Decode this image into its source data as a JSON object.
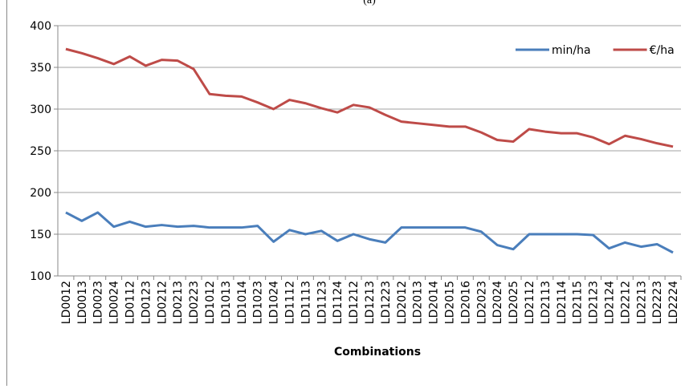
{
  "chart_data": {
    "type": "line",
    "title": "(a)",
    "x_label": "Combinations",
    "categories": [
      "LD0012",
      "LD0013",
      "LD0023",
      "LD0024",
      "LD0112",
      "LD0123",
      "LD0212",
      "LD0213",
      "LD0223",
      "LD1012",
      "LD1013",
      "LD1014",
      "LD1023",
      "LD1024",
      "LD1112",
      "LD1113",
      "LD1123",
      "LD1124",
      "LD1212",
      "LD1213",
      "LD1223",
      "LD2012",
      "LD2013",
      "LD2014",
      "LD2015",
      "LD2016",
      "LD2023",
      "LD2024",
      "LD2025",
      "LD2112",
      "LD2113",
      "LD2114",
      "LD2115",
      "LD2123",
      "LD2124",
      "LD2212",
      "LD2213",
      "LD2223",
      "LD2224"
    ],
    "series": [
      {
        "name": "min/ha",
        "color": "#4a7ebb",
        "values": [
          176,
          166,
          176,
          159,
          165,
          159,
          161,
          159,
          160,
          158,
          158,
          158,
          160,
          141,
          155,
          150,
          154,
          142,
          150,
          144,
          140,
          158,
          158,
          158,
          158,
          158,
          153,
          137,
          132,
          150,
          150,
          150,
          150,
          149,
          133,
          140,
          135,
          138,
          128
        ]
      },
      {
        "name": "€/ha",
        "color": "#be4b48",
        "values": [
          372,
          367,
          361,
          354,
          363,
          352,
          359,
          358,
          348,
          318,
          316,
          315,
          308,
          300,
          311,
          307,
          301,
          296,
          305,
          302,
          293,
          285,
          283,
          281,
          279,
          279,
          272,
          263,
          261,
          276,
          273,
          271,
          271,
          266,
          258,
          268,
          264,
          259,
          255
        ]
      }
    ],
    "ylim": [
      100,
      400
    ],
    "yticks": [
      100,
      150,
      200,
      250,
      300,
      350,
      400
    ],
    "grid": true,
    "legend": "top-right"
  }
}
